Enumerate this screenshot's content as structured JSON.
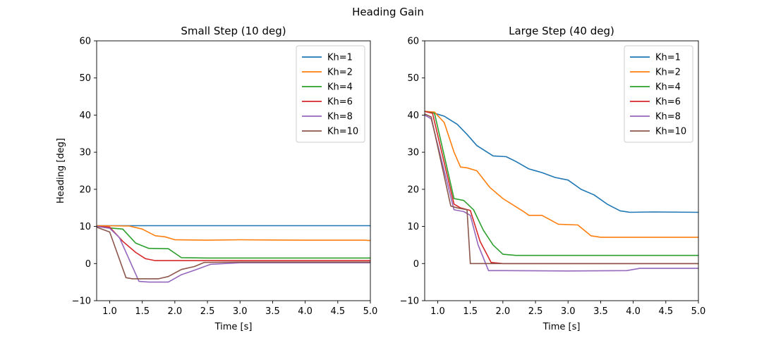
{
  "figure_title": "Heading Gain",
  "colors": {
    "Kh=1": "#1f77b4",
    "Kh=2": "#ff7f0e",
    "Kh=4": "#2ca02c",
    "Kh=6": "#d62728",
    "Kh=8": "#9467bd",
    "Kh=10": "#8c564b"
  },
  "chart_data": [
    {
      "type": "line",
      "title": "Small Step (10 deg)",
      "xlabel": "Time [s]",
      "ylabel": "Heading [deg]",
      "xlim": [
        0.8,
        5.0
      ],
      "ylim": [
        -10,
        60
      ],
      "xticks": [
        "1.0",
        "1.5",
        "2.0",
        "2.5",
        "3.0",
        "3.5",
        "4.0",
        "4.5",
        "5.0"
      ],
      "yticks": [
        "−10",
        "0",
        "10",
        "20",
        "30",
        "40",
        "50",
        "60"
      ],
      "legend_position": "top-right",
      "series": [
        {
          "name": "Kh=1",
          "x": [
            0.8,
            1.5,
            2.0,
            3.0,
            4.0,
            5.0
          ],
          "y": [
            10.2,
            10.2,
            10.2,
            10.2,
            10.2,
            10.2
          ]
        },
        {
          "name": "Kh=2",
          "x": [
            0.8,
            1.3,
            1.5,
            1.7,
            1.85,
            2.0,
            2.5,
            3.0,
            4.0,
            4.9,
            5.0
          ],
          "y": [
            10.2,
            10.1,
            9.3,
            7.5,
            7.2,
            6.4,
            6.3,
            6.4,
            6.3,
            6.3,
            6.2
          ]
        },
        {
          "name": "Kh=4",
          "x": [
            0.8,
            1.0,
            1.2,
            1.4,
            1.6,
            1.9,
            2.1,
            2.5,
            3.0,
            4.0,
            5.0
          ],
          "y": [
            10.0,
            9.6,
            9.3,
            5.5,
            4.1,
            4.0,
            1.6,
            1.5,
            1.5,
            1.5,
            1.5
          ]
        },
        {
          "name": "Kh=6",
          "x": [
            0.8,
            1.0,
            1.2,
            1.4,
            1.55,
            1.7,
            2.0,
            3.0,
            4.0,
            5.0
          ],
          "y": [
            10.0,
            9.8,
            6.0,
            3.0,
            1.3,
            0.8,
            0.8,
            0.8,
            0.8,
            0.8
          ]
        },
        {
          "name": "Kh=8",
          "x": [
            0.8,
            1.0,
            1.15,
            1.45,
            1.6,
            1.9,
            2.1,
            2.3,
            2.55,
            3.0,
            4.0,
            5.0
          ],
          "y": [
            10.0,
            9.5,
            7.0,
            -4.8,
            -5.0,
            -5.0,
            -3.0,
            -1.8,
            -0.2,
            0.2,
            0.2,
            0.2
          ]
        },
        {
          "name": "Kh=10",
          "x": [
            0.8,
            1.0,
            1.25,
            1.35,
            1.75,
            1.9,
            2.1,
            2.3,
            2.45,
            3.0,
            4.0,
            5.0
          ],
          "y": [
            9.8,
            8.5,
            -3.8,
            -4.1,
            -4.1,
            -3.5,
            -1.6,
            -0.8,
            0.3,
            0.4,
            0.4,
            0.4
          ]
        }
      ]
    },
    {
      "type": "line",
      "title": "Large Step (40 deg)",
      "xlabel": "Time [s]",
      "ylabel": "",
      "xlim": [
        0.8,
        5.0
      ],
      "ylim": [
        -10,
        60
      ],
      "xticks": [
        "1.0",
        "1.5",
        "2.0",
        "2.5",
        "3.0",
        "3.5",
        "4.0",
        "4.5",
        "5.0"
      ],
      "yticks": [
        "−10",
        "0",
        "10",
        "20",
        "30",
        "40",
        "50",
        "60"
      ],
      "legend_position": "top-right",
      "series": [
        {
          "name": "Kh=1",
          "x": [
            0.8,
            0.95,
            1.1,
            1.3,
            1.45,
            1.6,
            1.85,
            2.05,
            2.2,
            2.4,
            2.6,
            2.8,
            3.0,
            3.2,
            3.4,
            3.6,
            3.8,
            3.95,
            4.3,
            5.0
          ],
          "y": [
            41.0,
            40.5,
            39.7,
            37.5,
            34.8,
            31.8,
            29.0,
            28.8,
            27.5,
            25.5,
            24.5,
            23.2,
            22.5,
            20.0,
            18.5,
            16.0,
            14.2,
            13.8,
            13.9,
            13.8
          ]
        },
        {
          "name": "Kh=2",
          "x": [
            0.8,
            0.95,
            1.1,
            1.25,
            1.35,
            1.45,
            1.6,
            1.8,
            2.0,
            2.3,
            2.4,
            2.6,
            2.85,
            3.15,
            3.35,
            3.5,
            4.0,
            5.0
          ],
          "y": [
            41.0,
            40.8,
            38.0,
            30.0,
            26.0,
            25.8,
            25.0,
            20.5,
            17.5,
            14.2,
            13.0,
            13.0,
            10.6,
            10.4,
            7.5,
            7.1,
            7.1,
            7.1
          ]
        },
        {
          "name": "Kh=4",
          "x": [
            0.8,
            0.95,
            1.25,
            1.4,
            1.55,
            1.7,
            1.85,
            2.0,
            2.2,
            3.0,
            4.0,
            5.0
          ],
          "y": [
            41.0,
            40.5,
            17.5,
            17.0,
            14.5,
            9.0,
            5.0,
            2.5,
            2.2,
            2.2,
            2.2,
            2.2
          ]
        },
        {
          "name": "Kh=6",
          "x": [
            0.8,
            0.92,
            1.25,
            1.35,
            1.5,
            1.65,
            1.82,
            2.0,
            3.0,
            4.0,
            5.0
          ],
          "y": [
            41.0,
            40.5,
            16.0,
            15.0,
            14.3,
            6.0,
            0.3,
            0.0,
            0.0,
            0.0,
            0.0
          ]
        },
        {
          "name": "Kh=8",
          "x": [
            0.8,
            0.9,
            1.25,
            1.4,
            1.5,
            1.62,
            1.78,
            2.0,
            3.0,
            3.9,
            4.1,
            4.5,
            5.0
          ],
          "y": [
            40.0,
            39.0,
            14.5,
            14.0,
            13.0,
            5.0,
            -1.9,
            -1.9,
            -2.0,
            -1.9,
            -1.3,
            -1.3,
            -1.3
          ]
        },
        {
          "name": "Kh=10",
          "x": [
            0.8,
            0.9,
            1.2,
            1.3,
            1.45,
            1.5,
            2.0,
            3.0,
            4.0,
            5.0
          ],
          "y": [
            40.3,
            39.5,
            15.5,
            15.0,
            14.5,
            0.0,
            0.0,
            0.0,
            0.0,
            0.0
          ]
        }
      ]
    }
  ]
}
